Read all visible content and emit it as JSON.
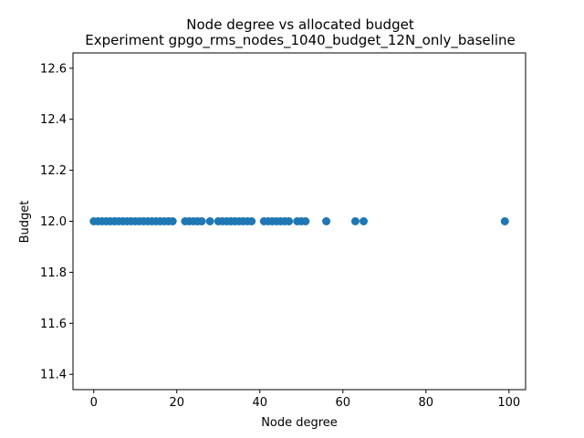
{
  "chart_data": {
    "type": "scatter",
    "title": "Node degree vs allocated budget",
    "subtitle": "Experiment gpgo_rms_nodes_1040_budget_12N_only_baseline",
    "xlabel": "Node degree",
    "ylabel": "Budget",
    "xlim": [
      -5,
      104
    ],
    "ylim": [
      11.34,
      12.66
    ],
    "xticks": [
      0,
      20,
      40,
      60,
      80,
      100
    ],
    "yticks": [
      11.4,
      11.6,
      11.8,
      12.0,
      12.2,
      12.4,
      12.6
    ],
    "xtick_labels": [
      "0",
      "20",
      "40",
      "60",
      "80",
      "100"
    ],
    "ytick_labels": [
      "11.4",
      "11.6",
      "11.8",
      "12.0",
      "12.2",
      "12.4",
      "12.6"
    ],
    "grid": false,
    "legend": "none",
    "marker_color": "#1f77b4",
    "points": [
      {
        "x": 0,
        "y": 12.0
      },
      {
        "x": 1,
        "y": 12.0
      },
      {
        "x": 2,
        "y": 12.0
      },
      {
        "x": 3,
        "y": 12.0
      },
      {
        "x": 4,
        "y": 12.0
      },
      {
        "x": 5,
        "y": 12.0
      },
      {
        "x": 6,
        "y": 12.0
      },
      {
        "x": 7,
        "y": 12.0
      },
      {
        "x": 8,
        "y": 12.0
      },
      {
        "x": 9,
        "y": 12.0
      },
      {
        "x": 10,
        "y": 12.0
      },
      {
        "x": 11,
        "y": 12.0
      },
      {
        "x": 12,
        "y": 12.0
      },
      {
        "x": 13,
        "y": 12.0
      },
      {
        "x": 14,
        "y": 12.0
      },
      {
        "x": 15,
        "y": 12.0
      },
      {
        "x": 16,
        "y": 12.0
      },
      {
        "x": 17,
        "y": 12.0
      },
      {
        "x": 18,
        "y": 12.0
      },
      {
        "x": 19,
        "y": 12.0
      },
      {
        "x": 22,
        "y": 12.0
      },
      {
        "x": 23,
        "y": 12.0
      },
      {
        "x": 24,
        "y": 12.0
      },
      {
        "x": 25,
        "y": 12.0
      },
      {
        "x": 26,
        "y": 12.0
      },
      {
        "x": 28,
        "y": 12.0
      },
      {
        "x": 30,
        "y": 12.0
      },
      {
        "x": 31,
        "y": 12.0
      },
      {
        "x": 32,
        "y": 12.0
      },
      {
        "x": 33,
        "y": 12.0
      },
      {
        "x": 34,
        "y": 12.0
      },
      {
        "x": 35,
        "y": 12.0
      },
      {
        "x": 36,
        "y": 12.0
      },
      {
        "x": 37,
        "y": 12.0
      },
      {
        "x": 38,
        "y": 12.0
      },
      {
        "x": 41,
        "y": 12.0
      },
      {
        "x": 42,
        "y": 12.0
      },
      {
        "x": 43,
        "y": 12.0
      },
      {
        "x": 44,
        "y": 12.0
      },
      {
        "x": 45,
        "y": 12.0
      },
      {
        "x": 46,
        "y": 12.0
      },
      {
        "x": 47,
        "y": 12.0
      },
      {
        "x": 49,
        "y": 12.0
      },
      {
        "x": 50,
        "y": 12.0
      },
      {
        "x": 51,
        "y": 12.0
      },
      {
        "x": 56,
        "y": 12.0
      },
      {
        "x": 63,
        "y": 12.0
      },
      {
        "x": 65,
        "y": 12.0
      },
      {
        "x": 99,
        "y": 12.0
      }
    ]
  }
}
